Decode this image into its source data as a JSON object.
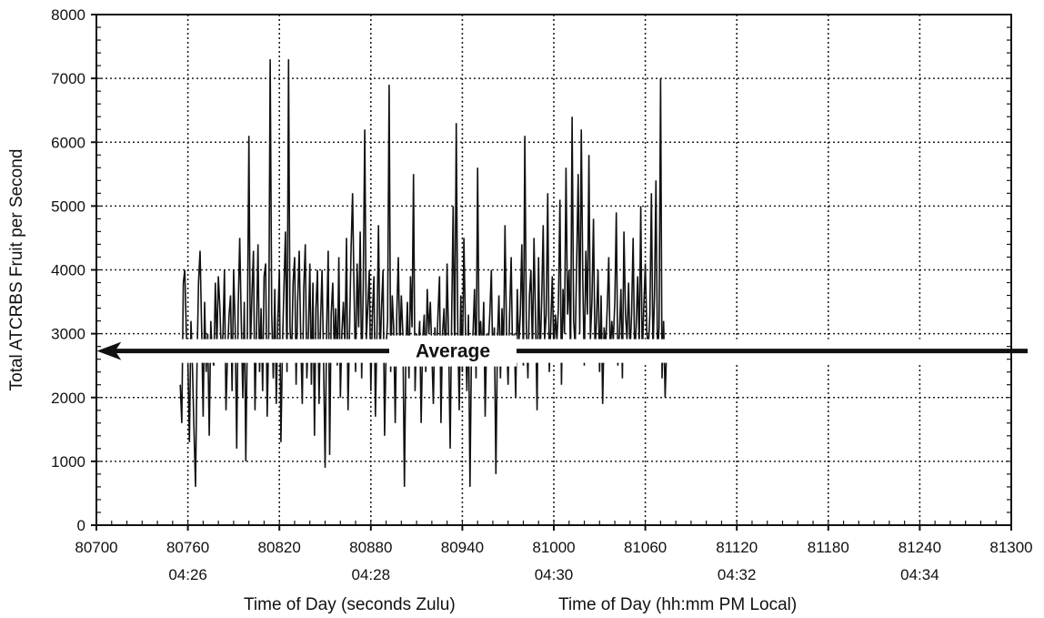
{
  "chart_data": {
    "type": "line",
    "ylabel": "Total ATCRBS Fruit per Second",
    "xlabel_primary": "Time of Day (seconds Zulu)",
    "xlabel_secondary": "Time of Day  (hh:mm PM  Local)",
    "xlim": [
      80700,
      81300
    ],
    "ylim": [
      0,
      8000
    ],
    "x_ticks": [
      80700,
      80760,
      80820,
      80880,
      80940,
      81000,
      81060,
      81120,
      81180,
      81240,
      81300
    ],
    "y_ticks": [
      0,
      1000,
      2000,
      3000,
      4000,
      5000,
      6000,
      7000,
      8000
    ],
    "local_time_ticks": [
      {
        "x": 80760,
        "label": "04:26"
      },
      {
        "x": 80880,
        "label": "04:28"
      },
      {
        "x": 81000,
        "label": "04:30"
      },
      {
        "x": 81120,
        "label": "04:32"
      },
      {
        "x": 81240,
        "label": "04:34"
      }
    ],
    "grid": true,
    "average": {
      "label": "Average",
      "value": 2900
    },
    "series": [
      {
        "x_start": 80755,
        "x_step": 1,
        "values": [
          2200,
          1600,
          3800,
          4000,
          3000,
          2600,
          1300,
          3200,
          2500,
          1500,
          600,
          2600,
          3800,
          4300,
          3100,
          1700,
          3500,
          2400,
          3000,
          1400,
          3200,
          2600,
          2500,
          3800,
          2800,
          3900,
          3400,
          2600,
          3000,
          4000,
          1800,
          2700,
          3300,
          3600,
          2100,
          4000,
          3100,
          1200,
          3400,
          4500,
          3200,
          2000,
          3500,
          1000,
          3000,
          6100,
          2700,
          3600,
          4300,
          1800,
          3000,
          4400,
          2400,
          3400,
          2100,
          3900,
          4100,
          1700,
          3000,
          7300,
          3300,
          2300,
          3700,
          1900,
          3200,
          4000,
          1300,
          2800,
          3700,
          4600,
          2400,
          7300,
          3100,
          2600,
          3800,
          4200,
          2200,
          3500,
          4300,
          2900,
          1900,
          3700,
          4400,
          2300,
          3000,
          4100,
          2200,
          3800,
          1400,
          3400,
          4000,
          1900,
          3200,
          4000,
          2600,
          900,
          3100,
          4300,
          1100,
          3300,
          3800,
          2700,
          3400,
          2500,
          4200,
          2000,
          3000,
          3500,
          2800,
          4500,
          1800,
          3000,
          4300,
          5200,
          3600,
          2400,
          4100,
          3100,
          4600,
          2300,
          3700,
          6200,
          2900,
          3400,
          4000,
          2100,
          3300,
          3900,
          1700,
          3000,
          4700,
          2600,
          3400,
          4000,
          1400,
          2800,
          3200,
          6900,
          2400,
          3600,
          3100,
          1600,
          3300,
          4200,
          2700,
          3600,
          3000,
          600,
          2800,
          3500,
          2300,
          3900,
          3100,
          5500,
          2100,
          3000,
          2700,
          3200,
          1600,
          2900,
          3300,
          2400,
          3700,
          3000,
          3500,
          2700,
          1900,
          3100,
          2600,
          3300,
          3900,
          1600,
          3000,
          3400,
          2500,
          4100,
          2900,
          1200,
          3300,
          5000,
          2600,
          6300,
          3000,
          1800,
          3600,
          2400,
          4500,
          3100,
          2100,
          3300,
          600,
          2800,
          3000,
          3700,
          2300,
          5600,
          2900,
          3200,
          2600,
          3500,
          1700,
          3000,
          2800,
          3300,
          4000,
          2500,
          3100,
          800,
          2900,
          3600,
          2300,
          3400,
          2700,
          4700,
          3000,
          2200,
          3300,
          4200,
          2600,
          3000,
          2000,
          3700,
          2800,
          3300,
          4400,
          2500,
          6100,
          3100,
          2300,
          3600,
          4000,
          2700,
          4500,
          3200,
          1800,
          4200,
          2600,
          3500,
          4700,
          2900,
          3300,
          5200,
          2400,
          3100,
          3900,
          2700,
          3300,
          2900,
          3400,
          5100,
          2200,
          3700,
          3000,
          5600,
          3300,
          4000,
          2600,
          6400,
          3200,
          2800,
          4100,
          5500,
          3000,
          6200,
          3800,
          2500,
          4300,
          3300,
          5800,
          2900,
          3500,
          4800,
          2700,
          3200,
          4000,
          2400,
          3600,
          1900,
          3100,
          2800,
          3400,
          4200,
          2600,
          3200,
          2900,
          3500,
          4900,
          2500,
          3000,
          3700,
          2300,
          4600,
          3300,
          2900,
          3800,
          2700,
          3300,
          4500,
          2600,
          3100,
          3900,
          2800,
          5000,
          2600,
          3400,
          4100,
          3000,
          2800,
          3300,
          5200,
          2700,
          3600,
          5400,
          2600,
          3100,
          7000,
          2300,
          3200,
          2000,
          2800
        ]
      }
    ]
  }
}
